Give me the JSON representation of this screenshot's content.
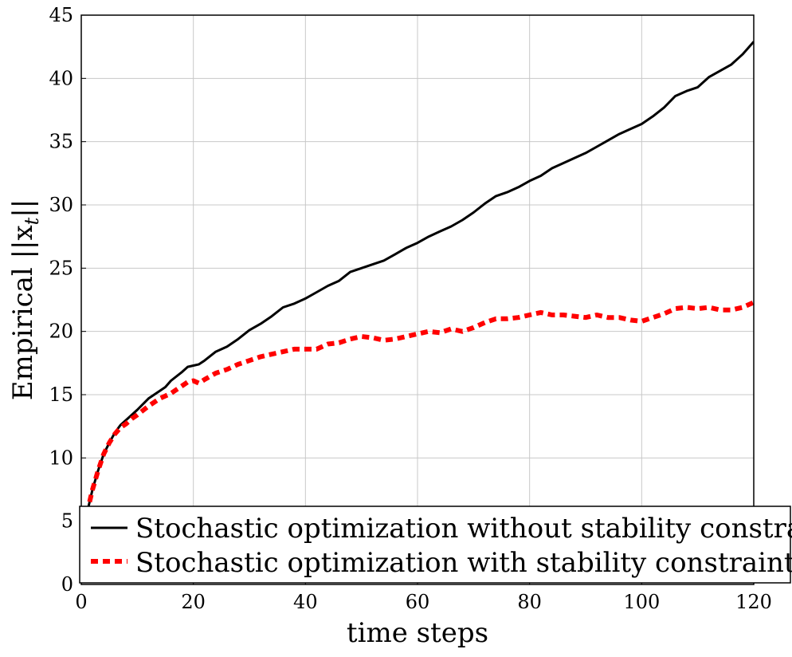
{
  "chart_data": {
    "type": "line",
    "title": "",
    "xlabel": "time steps",
    "ylabel": "Empirical ||x",
    "ylabel_subscript": "t",
    "ylabel_suffix": "||",
    "xlim": [
      0,
      120
    ],
    "ylim": [
      0,
      45
    ],
    "xticks": [
      "0",
      "20",
      "40",
      "60",
      "80",
      "100",
      "120"
    ],
    "yticks": [
      "0",
      "5",
      "10",
      "15",
      "20",
      "25",
      "30",
      "35",
      "40",
      "45"
    ],
    "grid": true,
    "legend_position": "bottom",
    "series": [
      {
        "name": "Stochastic optimization without stability constraint",
        "color": "#000000",
        "style": "solid",
        "x": [
          1,
          2,
          3,
          4,
          5,
          6,
          7,
          8,
          9,
          10,
          12,
          14,
          15,
          16,
          18,
          19,
          20,
          21,
          22,
          24,
          26,
          28,
          30,
          32,
          34,
          36,
          38,
          40,
          42,
          44,
          46,
          48,
          50,
          52,
          54,
          56,
          58,
          60,
          62,
          64,
          66,
          68,
          70,
          72,
          74,
          76,
          78,
          80,
          82,
          84,
          86,
          88,
          90,
          92,
          94,
          96,
          98,
          100,
          102,
          104,
          106,
          108,
          110,
          112,
          114,
          116,
          118,
          120
        ],
        "values": [
          5.6,
          7.5,
          9.0,
          10.3,
          11.2,
          12.0,
          12.6,
          13.0,
          13.4,
          13.8,
          14.7,
          15.3,
          15.6,
          16.1,
          16.8,
          17.2,
          17.3,
          17.4,
          17.7,
          18.4,
          18.8,
          19.4,
          20.1,
          20.6,
          21.2,
          21.9,
          22.2,
          22.6,
          23.1,
          23.6,
          24.0,
          24.7,
          25.0,
          25.3,
          25.6,
          26.1,
          26.6,
          27.0,
          27.5,
          27.9,
          28.3,
          28.8,
          29.4,
          30.1,
          30.7,
          31.0,
          31.4,
          31.9,
          32.3,
          32.9,
          33.3,
          33.7,
          34.1,
          34.6,
          35.1,
          35.6,
          36.0,
          36.4,
          37.0,
          37.7,
          38.6,
          39.0,
          39.3,
          40.1,
          40.6,
          41.1,
          41.9,
          42.9
        ]
      },
      {
        "name": "Stochastic optimization with stability constraint",
        "color": "#ff0000",
        "style": "dashed",
        "x": [
          1,
          2,
          3,
          4,
          5,
          6,
          7,
          8,
          9,
          10,
          12,
          14,
          16,
          18,
          19,
          20,
          21,
          22,
          24,
          26,
          28,
          30,
          32,
          34,
          36,
          38,
          40,
          42,
          44,
          46,
          48,
          50,
          52,
          54,
          56,
          58,
          60,
          62,
          64,
          66,
          68,
          70,
          72,
          74,
          76,
          78,
          80,
          82,
          84,
          86,
          88,
          90,
          92,
          94,
          96,
          98,
          100,
          102,
          104,
          106,
          108,
          110,
          112,
          114,
          116,
          118,
          120
        ],
        "values": [
          5.6,
          7.5,
          9.0,
          10.3,
          11.2,
          11.9,
          12.4,
          12.7,
          13.1,
          13.4,
          14.1,
          14.7,
          15.1,
          15.7,
          16.0,
          16.1,
          15.9,
          16.2,
          16.7,
          17.0,
          17.4,
          17.7,
          18.0,
          18.2,
          18.4,
          18.6,
          18.6,
          18.6,
          19.0,
          19.1,
          19.4,
          19.6,
          19.5,
          19.3,
          19.4,
          19.6,
          19.8,
          20.0,
          19.9,
          20.2,
          20.0,
          20.3,
          20.7,
          21.0,
          21.0,
          21.1,
          21.3,
          21.5,
          21.3,
          21.3,
          21.2,
          21.1,
          21.3,
          21.1,
          21.1,
          20.9,
          20.8,
          21.1,
          21.4,
          21.8,
          21.9,
          21.8,
          21.9,
          21.7,
          21.7,
          21.9,
          22.3
        ]
      }
    ]
  }
}
